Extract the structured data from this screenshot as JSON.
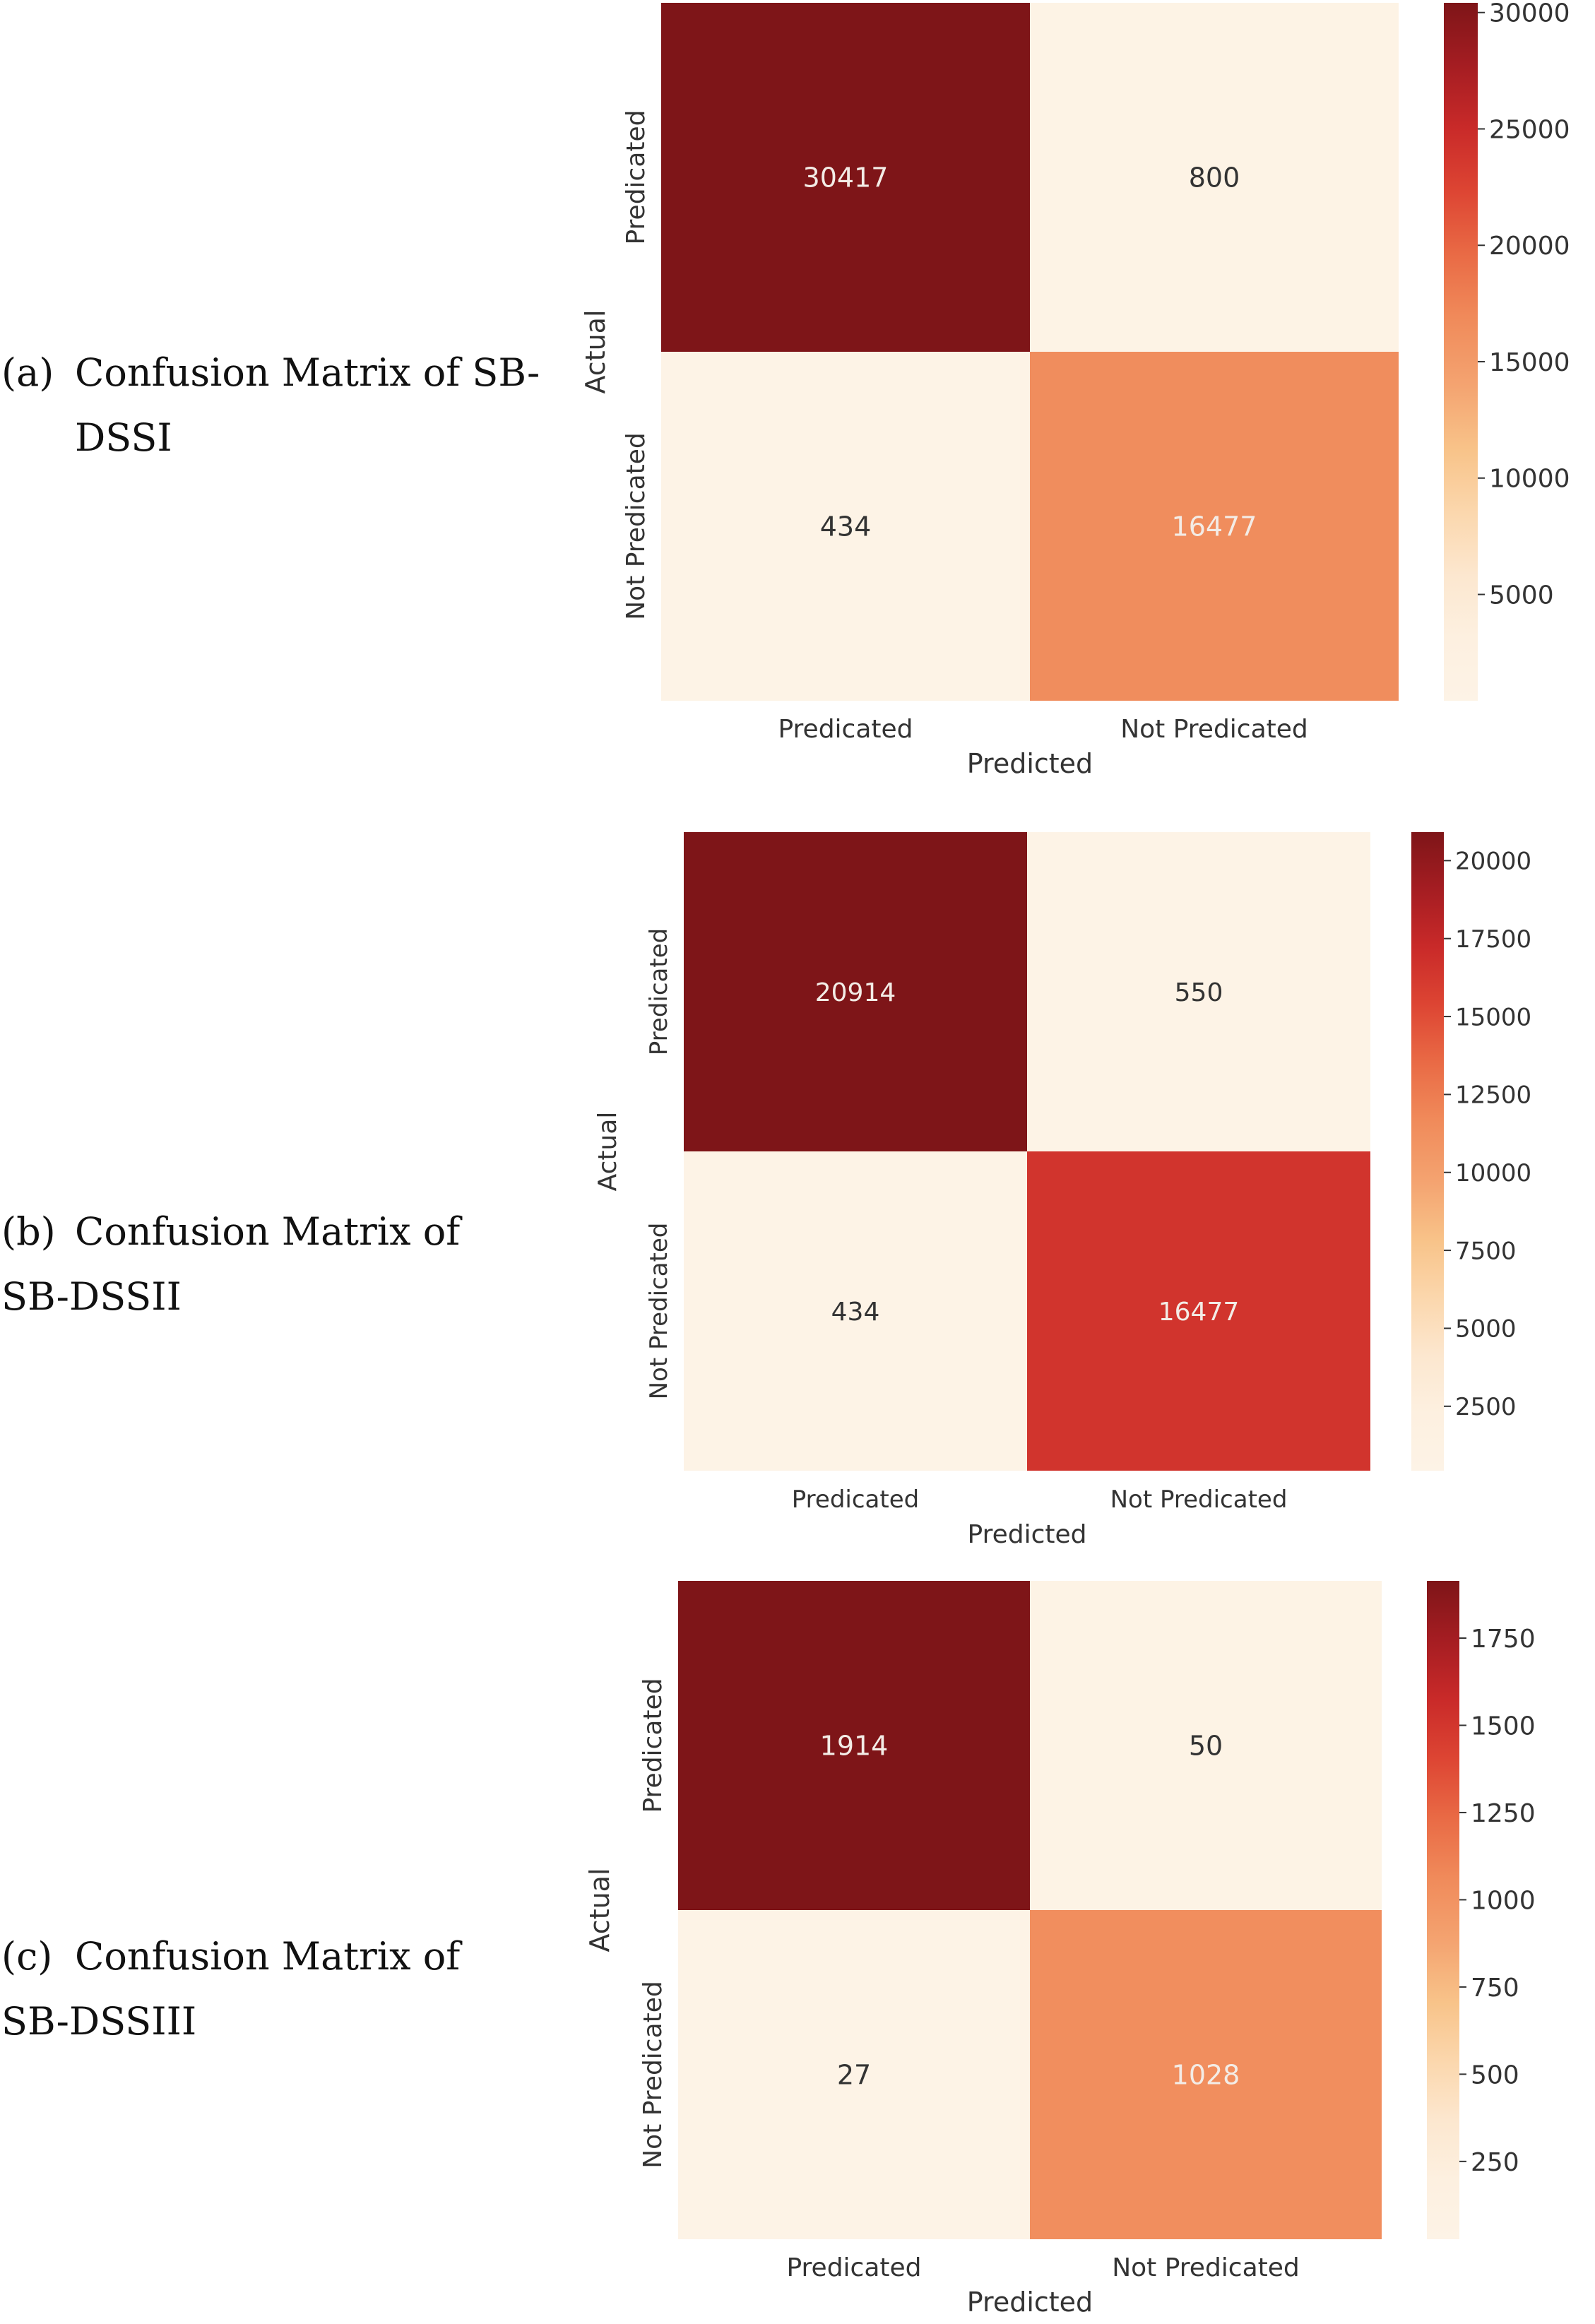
{
  "captions": [
    {
      "tag": "(a)",
      "lines": [
        "Confusion Matrix of SB-",
        "DSSI"
      ]
    },
    {
      "tag": "(b)",
      "lines": [
        "Confusion Matrix of",
        "SB-DSSII"
      ]
    },
    {
      "tag": "(c)",
      "lines": [
        "Confusion Matrix of",
        "SB-DSSIII"
      ]
    }
  ],
  "chart_data": [
    {
      "type": "heatmap",
      "title": "",
      "xlabel": "Predicted",
      "ylabel": "Actual",
      "x_categories": [
        "Predicated",
        "Not Predicated"
      ],
      "y_categories": [
        "Predicated",
        "Not Predicated"
      ],
      "values": [
        [
          30417,
          800
        ],
        [
          434,
          16477
        ]
      ],
      "colorbar": {
        "ticks": [
          5000,
          10000,
          15000,
          20000,
          25000,
          30000
        ],
        "range": [
          434,
          30417
        ]
      },
      "colormap": "OrRd"
    },
    {
      "type": "heatmap",
      "title": "",
      "xlabel": "Predicted",
      "ylabel": "Actual",
      "x_categories": [
        "Predicated",
        "Not Predicated"
      ],
      "y_categories": [
        "Predicated",
        "Not Predicated"
      ],
      "values": [
        [
          20914,
          550
        ],
        [
          434,
          16477
        ]
      ],
      "colorbar": {
        "ticks": [
          2500,
          5000,
          7500,
          10000,
          12500,
          15000,
          17500,
          20000
        ],
        "range": [
          434,
          20914
        ]
      },
      "colormap": "OrRd"
    },
    {
      "type": "heatmap",
      "title": "",
      "xlabel": "Predicted",
      "ylabel": "Actual",
      "x_categories": [
        "Predicated",
        "Not Predicated"
      ],
      "y_categories": [
        "Predicated",
        "Not Predicated"
      ],
      "values": [
        [
          1914,
          50
        ],
        [
          27,
          1028
        ]
      ],
      "colorbar": {
        "ticks": [
          250,
          500,
          750,
          1000,
          1250,
          1500,
          1750
        ],
        "range": [
          27,
          1914
        ]
      },
      "colormap": "OrRd"
    }
  ],
  "colors": {
    "scale": [
      "#fdf3e6",
      "#fdf0e0",
      "#fce7cf",
      "#fbd7ad",
      "#f8c389",
      "#f4a471",
      "#f08a5a",
      "#e96a45",
      "#dd4533",
      "#c92a29",
      "#a51d22",
      "#7e1518"
    ],
    "text_light": "#f3ece6",
    "text_dark": "#333333",
    "axis_text": "#333333"
  }
}
